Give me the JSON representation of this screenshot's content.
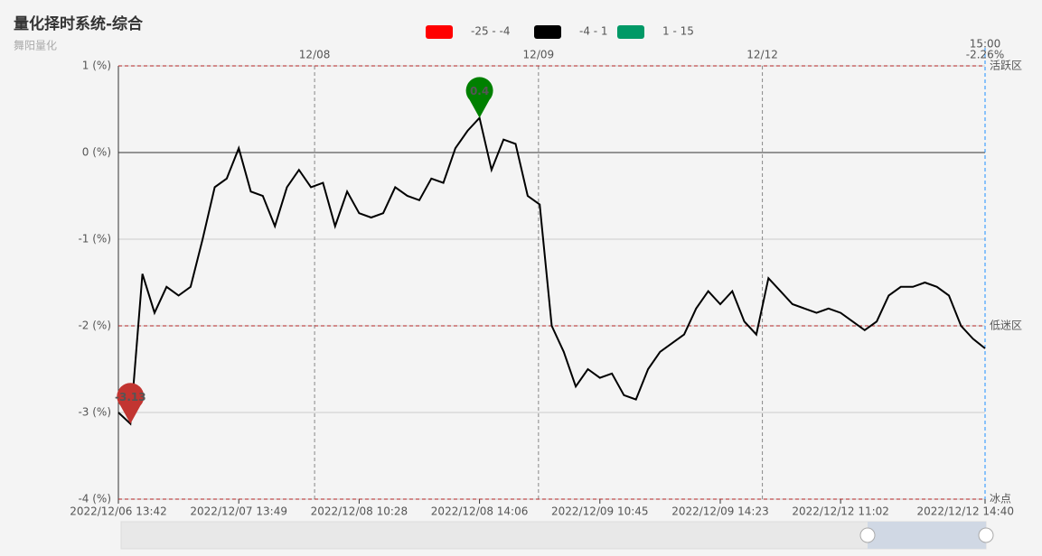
{
  "chart_data": {
    "type": "line",
    "title": "量化择时系统-综合",
    "subtitle": "舞阳量化",
    "pieces": [
      {
        "min": -25,
        "max": -4,
        "label": "-25 - -4",
        "color": "#ff0000"
      },
      {
        "min": -4,
        "max": 1,
        "label": "-4 - 1",
        "color": "#000000"
      },
      {
        "min": 1,
        "max": 15,
        "label": "1 - 15",
        "color": "#009966"
      }
    ],
    "categories": [
      "2022/12/06 13:42",
      null,
      null,
      null,
      null,
      null,
      null,
      null,
      null,
      null,
      "2022/12/07 13:49",
      null,
      null,
      null,
      null,
      null,
      null,
      null,
      null,
      null,
      "2022/12/08 10:28",
      null,
      null,
      null,
      null,
      null,
      null,
      null,
      null,
      null,
      "2022/12/08 14:06",
      null,
      null,
      null,
      null,
      null,
      null,
      null,
      null,
      null,
      "2022/12/09 10:45",
      null,
      null,
      null,
      null,
      null,
      null,
      null,
      null,
      null,
      "2022/12/09 14:23",
      null,
      null,
      null,
      null,
      null,
      null,
      null,
      null,
      null,
      "2022/12/12 11:02",
      null,
      null,
      null,
      null,
      null,
      null,
      null,
      null,
      null,
      null,
      null,
      "2022/12/12 14:40"
    ],
    "values": [
      -3.0,
      -3.13,
      -1.4,
      -1.85,
      -1.55,
      -1.65,
      -1.55,
      -1.0,
      -0.4,
      -0.3,
      0.05,
      -0.45,
      -0.5,
      -0.85,
      -0.4,
      -0.2,
      -0.4,
      -0.35,
      -0.85,
      -0.45,
      -0.7,
      -0.75,
      -0.7,
      -0.4,
      -0.5,
      -0.55,
      -0.3,
      -0.35,
      0.05,
      0.25,
      0.4,
      -0.2,
      0.15,
      0.1,
      -0.5,
      -0.6,
      -2.0,
      -2.3,
      -2.7,
      -2.5,
      -2.6,
      -2.55,
      -2.8,
      -2.85,
      -2.5,
      -2.3,
      -2.2,
      -2.1,
      -1.8,
      -1.6,
      -1.75,
      -1.6,
      -1.95,
      -2.1,
      -1.45,
      -1.6,
      -1.75,
      -1.8,
      -1.85,
      -1.8,
      -1.85,
      -1.95,
      -2.05,
      -1.95,
      -1.65,
      -1.55,
      -1.55,
      -1.5,
      -1.55,
      -1.65,
      -2.0,
      -2.15,
      -2.26
    ],
    "ylim": [
      -4,
      1
    ],
    "yticks": [
      {
        "value": -4,
        "label": "-4 (%)"
      },
      {
        "value": -3,
        "label": "-3 (%)"
      },
      {
        "value": -2,
        "label": "-2 (%)"
      },
      {
        "value": -1,
        "label": "-1 (%)"
      },
      {
        "value": 0,
        "label": "0 (%)"
      },
      {
        "value": 1,
        "label": "1 (%)"
      }
    ],
    "day_ticks": [
      {
        "value": 16.3,
        "label": "12/08"
      },
      {
        "value": 34.9,
        "label": "12/09"
      },
      {
        "value": 53.5,
        "label": "12/12"
      }
    ],
    "mark_lines": [
      {
        "value": 1,
        "label": "活跃区"
      },
      {
        "value": -2,
        "label": "低迷区"
      },
      {
        "value": -4,
        "label": "冰点"
      }
    ],
    "mark_line_color": "#b22222",
    "mark_points": [
      {
        "type": "max",
        "color": "#008000"
      },
      {
        "type": "min",
        "color": "#c23531"
      }
    ],
    "end_time": "15:00",
    "end_label": "-2.26%",
    "end_color": "#1e90ff",
    "grid": true
  }
}
